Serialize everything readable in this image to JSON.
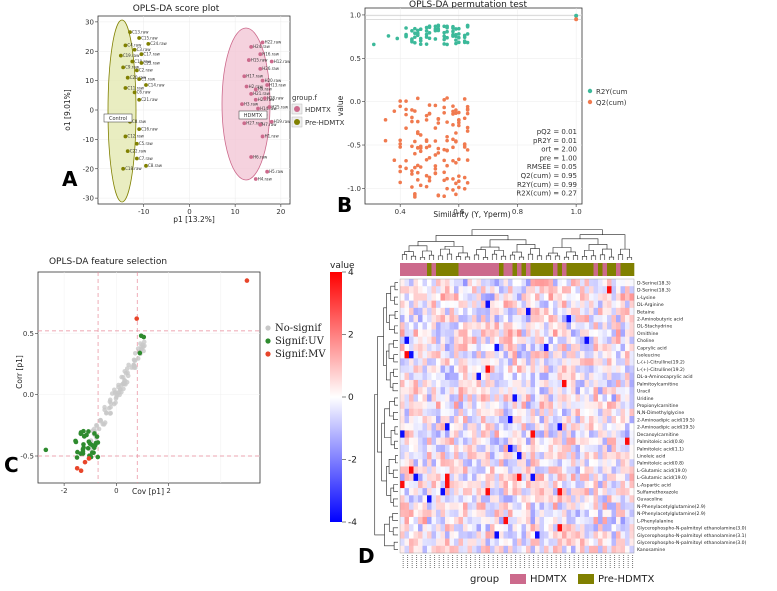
{
  "panel_letters": [
    "A",
    "B",
    "C",
    "D"
  ],
  "colors": {
    "hdmtx": "#cc6a8c",
    "pre": "#808000",
    "ellipse_h": "#f3c7d6",
    "ellipse_p": "#e3e8b2",
    "r2y": "#3cb99a",
    "q2": "#f07a4f",
    "nosig": "#c8c8c8",
    "siguv": "#2e8b2e",
    "sigmv": "#e8452a",
    "hm_high": "#ff0000",
    "hm_mid": "#ffffff",
    "hm_low": "#0000ff"
  },
  "chart_data": [
    {
      "type": "scatter",
      "title": "OPLS-DA score plot",
      "xlabel": "p1 [13.2%]",
      "ylabel": "o1 [9.01%]",
      "xlim": [
        -20,
        22
      ],
      "ylim": [
        -32,
        32
      ],
      "xticks": [
        -10,
        0,
        10,
        20
      ],
      "yticks": [
        -30,
        -20,
        -10,
        0,
        10,
        20,
        30
      ],
      "legend_title": "group.f",
      "legend": [
        "HDMTX",
        "Pre-HDMTX"
      ],
      "annotations": [
        "Control",
        "HDMTX"
      ],
      "series": [
        {
          "name": "HDMTX",
          "points": [
            {
              "x": 13.5,
              "y": 21.5,
              "label": "H24.raw"
            },
            {
              "x": 16.0,
              "y": 23.0,
              "label": "H22.raw"
            },
            {
              "x": 15.5,
              "y": 19.0,
              "label": "H16.raw"
            },
            {
              "x": 18.0,
              "y": 16.5,
              "label": "H12.raw"
            },
            {
              "x": 13.0,
              "y": 17.0,
              "label": "H15.raw"
            },
            {
              "x": 15.5,
              "y": 14.0,
              "label": "H26.raw"
            },
            {
              "x": 12.0,
              "y": 11.5,
              "label": "H17.raw"
            },
            {
              "x": 16.0,
              "y": 10.0,
              "label": "H20.raw"
            },
            {
              "x": 12.5,
              "y": 8.0,
              "label": "H2.raw"
            },
            {
              "x": 14.5,
              "y": 7.0,
              "label": "H9.raw"
            },
            {
              "x": 13.5,
              "y": 5.5,
              "label": "H21.raw"
            },
            {
              "x": 17.0,
              "y": 8.5,
              "label": "H13.raw"
            },
            {
              "x": 14.5,
              "y": 3.5,
              "label": "H23.raw"
            },
            {
              "x": 16.5,
              "y": 4.0,
              "label": "H18.raw"
            },
            {
              "x": 11.5,
              "y": 2.0,
              "label": "H3.raw"
            },
            {
              "x": 15.0,
              "y": 0.5,
              "label": "H14.raw"
            },
            {
              "x": 17.5,
              "y": 1.0,
              "label": "H25.raw"
            },
            {
              "x": 13.0,
              "y": -2.0,
              "label": "H10.raw"
            },
            {
              "x": 12.0,
              "y": -4.5,
              "label": "H27.raw"
            },
            {
              "x": 15.5,
              "y": -5.0,
              "label": "H7.raw"
            },
            {
              "x": 18.0,
              "y": -4.0,
              "label": "H19.raw"
            },
            {
              "x": 16.0,
              "y": -9.0,
              "label": "H1.raw"
            },
            {
              "x": 13.5,
              "y": -16.0,
              "label": "H6.raw"
            },
            {
              "x": 17.0,
              "y": -21.0,
              "label": "H5.raw"
            },
            {
              "x": 14.5,
              "y": -23.5,
              "label": "H4.raw"
            }
          ]
        },
        {
          "name": "Pre-HDMTX",
          "points": [
            {
              "x": -13.0,
              "y": 26.5,
              "label": "C13.raw"
            },
            {
              "x": -11.0,
              "y": 24.5,
              "label": "C15.raw"
            },
            {
              "x": -14.0,
              "y": 22.0,
              "label": "C4.raw"
            },
            {
              "x": -9.0,
              "y": 22.5,
              "label": "C24.raw"
            },
            {
              "x": -12.0,
              "y": 20.5,
              "label": "C3.raw"
            },
            {
              "x": -10.5,
              "y": 19.0,
              "label": "C17.raw"
            },
            {
              "x": -15.0,
              "y": 18.5,
              "label": "C19.raw"
            },
            {
              "x": -12.5,
              "y": 16.5,
              "label": "C10.raw"
            },
            {
              "x": -10.5,
              "y": 16.0,
              "label": "C23.raw"
            },
            {
              "x": -14.5,
              "y": 14.5,
              "label": "C9.raw"
            },
            {
              "x": -11.5,
              "y": 13.5,
              "label": "C2.raw"
            },
            {
              "x": -13.5,
              "y": 11.0,
              "label": "C20.raw"
            },
            {
              "x": -11.0,
              "y": 10.5,
              "label": "C1.raw"
            },
            {
              "x": -9.5,
              "y": 8.5,
              "label": "C14.raw"
            },
            {
              "x": -14.0,
              "y": 7.5,
              "label": "C11.raw"
            },
            {
              "x": -12.0,
              "y": 6.0,
              "label": "C6.raw"
            },
            {
              "x": -11.0,
              "y": 3.5,
              "label": "C21.raw"
            },
            {
              "x": -13.0,
              "y": -4.0,
              "label": "C8.raw"
            },
            {
              "x": -11.0,
              "y": -6.5,
              "label": "C16.raw"
            },
            {
              "x": -14.0,
              "y": -9.0,
              "label": "C12.raw"
            },
            {
              "x": -11.5,
              "y": -11.5,
              "label": "C5.raw"
            },
            {
              "x": -13.5,
              "y": -14.0,
              "label": "C22.raw"
            },
            {
              "x": -11.5,
              "y": -16.5,
              "label": "C7.raw"
            },
            {
              "x": -14.5,
              "y": -20.0,
              "label": "C18.raw"
            },
            {
              "x": -9.5,
              "y": -19.0,
              "label": "C8.raw"
            }
          ]
        }
      ]
    },
    {
      "type": "scatter",
      "title": "OPLS-DA permutation test",
      "xlabel": "Similarity (Y, Yperm)",
      "ylabel": "value",
      "xlim": [
        0.28,
        1.02
      ],
      "ylim": [
        -1.18,
        1.08
      ],
      "xticks": [
        0.4,
        0.6,
        0.8,
        1.0
      ],
      "yticks": [
        -1.0,
        -0.5,
        0.0,
        0.5,
        1.0
      ],
      "legend": [
        "R2Y(cum",
        "Q2(cum)"
      ],
      "stats": [
        "pQ2 = 0.01",
        "pR2Y = 0.01",
        "ort = 2.00",
        "pre = 1.00",
        "RMSEE = 0.05",
        "Q2(cum) = 0.95",
        "R2Y(cum) = 0.99",
        "R2X(cum) = 0.27"
      ],
      "r2y_x": [
        0.31,
        0.36,
        0.39,
        0.42,
        0.44,
        0.45,
        0.46,
        0.47,
        0.49,
        0.5,
        0.52,
        0.53,
        0.55,
        0.56,
        0.58,
        0.59,
        0.6,
        0.62,
        0.63,
        1.0
      ],
      "q2_x": [
        0.35,
        0.38,
        0.4,
        0.42,
        0.44,
        0.45,
        0.46,
        0.47,
        0.49,
        0.5,
        0.52,
        0.53,
        0.55,
        0.56,
        0.58,
        0.59,
        0.6,
        0.62,
        0.63,
        1.0
      ]
    },
    {
      "type": "scatter",
      "title": "OPLS-DA feature selection",
      "xlabel": "Cov [p1]",
      "ylabel": "Corr [p1]",
      "xlim": [
        -3.0,
        5.5
      ],
      "ylim": [
        -0.72,
        1.0
      ],
      "xticks": [
        -2,
        0,
        2
      ],
      "yticks": [
        -0.5,
        0.0,
        0.5
      ],
      "legend": [
        "No-signif",
        "Signif:UV",
        "Signif:MV"
      ],
      "hlines": [
        0.52,
        -0.5
      ],
      "vlines": [
        -0.7,
        0.8
      ]
    },
    {
      "type": "heatmap",
      "color_title": "value",
      "colorbar_ticks": [
        4,
        2,
        0,
        -2,
        -4
      ],
      "group_legend_title": "group",
      "group_legend": [
        "HDMTX",
        "Pre-HDMTX"
      ],
      "n_columns": 52,
      "rows": [
        "D-Serine(18.3)",
        "D-Serine(18.3)",
        "L-Lysine",
        "DL-Arginine",
        "Betaine",
        "2-Aminobutyric acid",
        "DL-Stachydrine",
        "Ornithine",
        "Choline",
        "Caprylic acid",
        "Isoleucine",
        "L-(+)-Citrulline(19.2)",
        "L-(+)-Citrulline(19.2)",
        "DL-a-Aminocaprylic acid",
        "Palmitoylcarnitine",
        "Uracil",
        "Uridine",
        "Propionylcarnitine",
        "N,N-Dimethylglycine",
        "2-Aminoadipic acid(19.5)",
        "2-Aminoadipic acid(19.5)",
        "Decanoylcarnitine",
        "Palmitoleic acid(0.8)",
        "Palmitoleic acid(1.1)",
        "Linoleic acid",
        "Palmitoleic acid(0.8)",
        "L-Glutamic acid(19.0)",
        "L-Glutamic acid(19.0)",
        "L-Aspartic acid",
        "Sulfamethoxazole",
        "Guvacoline",
        "N-Phenylacetylglutamine(2.9)",
        "N-Phenylacetylglutamine(2.9)",
        "L-Phenylalanine",
        "Glycerophospho-N-palmitoyl ethanolamine(3.0)",
        "Glycerophospho-N-palmitoyl ethanolamine(3.1)",
        "Glycerophospho-N-palmitoyl ethanolamine(3.0)",
        "Kanosamine"
      ]
    }
  ]
}
